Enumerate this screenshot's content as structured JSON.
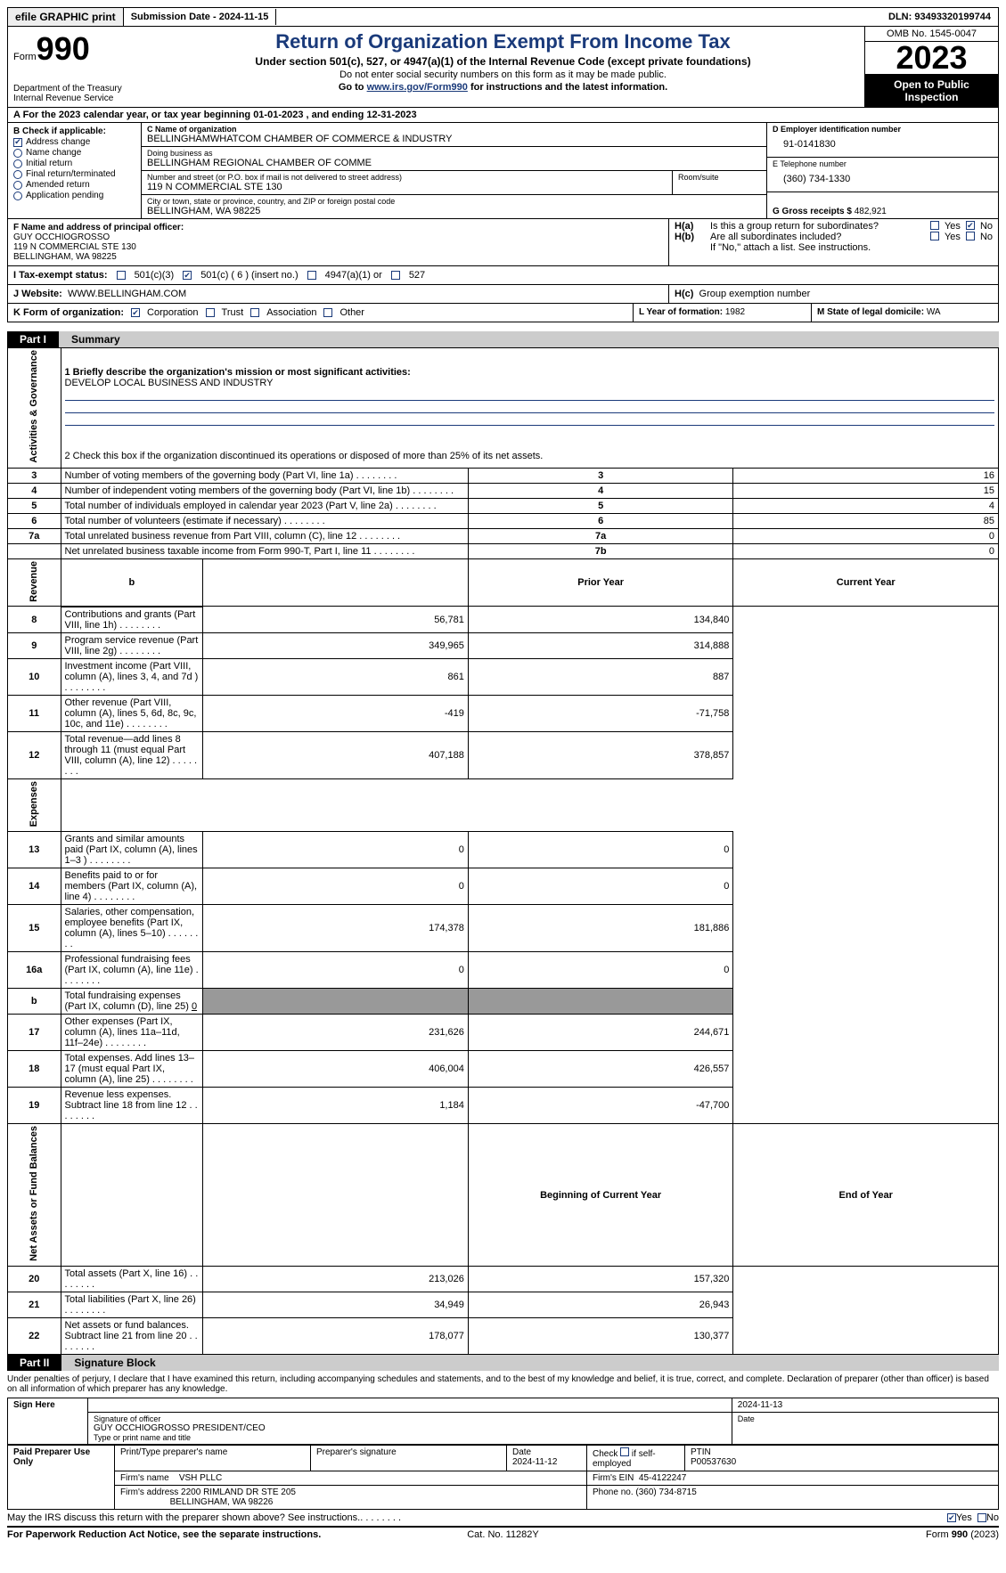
{
  "topbar": {
    "efile_btn": "efile GRAPHIC print",
    "submission": "Submission Date - 2024-11-15",
    "dln": "DLN: 93493320199744"
  },
  "header": {
    "form_word": "Form",
    "form_num": "990",
    "dept": "Department of the Treasury",
    "irs": "Internal Revenue Service",
    "title": "Return of Organization Exempt From Income Tax",
    "sub1": "Under section 501(c), 527, or 4947(a)(1) of the Internal Revenue Code (except private foundations)",
    "sub2": "Do not enter social security numbers on this form as it may be made public.",
    "sub3a": "Go to ",
    "sub3link": "www.irs.gov/Form990",
    "sub3b": " for instructions and the latest information.",
    "omb": "OMB No. 1545-0047",
    "year": "2023",
    "open": "Open to Public Inspection"
  },
  "rowA": "A For the 2023 calendar year, or tax year beginning 01-01-2023   , and ending 12-31-2023",
  "boxB": {
    "label": "B Check if applicable:",
    "items": [
      {
        "label": "Address change",
        "checked": true,
        "shape": "square"
      },
      {
        "label": "Name change",
        "checked": false,
        "shape": "round"
      },
      {
        "label": "Initial return",
        "checked": false,
        "shape": "round"
      },
      {
        "label": "Final return/terminated",
        "checked": false,
        "shape": "round"
      },
      {
        "label": "Amended return",
        "checked": false,
        "shape": "round"
      },
      {
        "label": "Application pending",
        "checked": false,
        "shape": "round"
      }
    ]
  },
  "boxC": {
    "name_lab": "C Name of organization",
    "name": "BELLINGHAMWHATCOM CHAMBER OF COMMERCE & INDUSTRY",
    "dba_lab": "Doing business as",
    "dba": "BELLINGHAM REGIONAL CHAMBER OF COMME",
    "street_lab": "Number and street (or P.O. box if mail is not delivered to street address)",
    "street": "119 N COMMERCIAL STE 130",
    "room_lab": "Room/suite",
    "room": "",
    "city_lab": "City or town, state or province, country, and ZIP or foreign postal code",
    "city": "BELLINGHAM, WA  98225"
  },
  "boxD": {
    "lab": "D Employer identification number",
    "val": "91-0141830"
  },
  "boxE": {
    "lab": "E Telephone number",
    "val": "(360) 734-1330"
  },
  "boxG": {
    "lab": "G Gross receipts $",
    "val": "482,921"
  },
  "boxF": {
    "lab": "F  Name and address of principal officer:",
    "name": "GUY OCCHIOGROSSO",
    "addr1": "119 N COMMERCIAL STE 130",
    "addr2": "BELLINGHAM, WA  98225"
  },
  "boxH": {
    "a_lab": "H(a)",
    "a_q": "Is this a group return for subordinates?",
    "a_yes": false,
    "a_no": true,
    "b_lab": "H(b)",
    "b_q": "Are all subordinates included?",
    "b_yes": false,
    "b_no": false,
    "b_note": "If \"No,\" attach a list. See instructions.",
    "c_lab": "H(c)",
    "c_q": "Group exemption number",
    "c_val": ""
  },
  "boxI": {
    "lab": "I   Tax-exempt status:",
    "o1": "501(c)(3)",
    "o1c": false,
    "o2": "501(c) ( 6 ) (insert no.)",
    "o2c": true,
    "o3": "4947(a)(1) or",
    "o3c": false,
    "o4": "527",
    "o4c": false
  },
  "boxJ": {
    "lab": "J    Website:",
    "val": "WWW.BELLINGHAM.COM"
  },
  "boxK": {
    "lab": "K Form of organization:",
    "o1": "Corporation",
    "o1c": true,
    "o2": "Trust",
    "o2c": false,
    "o3": "Association",
    "o3c": false,
    "o4": "Other",
    "o4c": false
  },
  "boxL": {
    "lab": "L Year of formation:",
    "val": "1982"
  },
  "boxM": {
    "lab": "M State of legal domicile:",
    "val": "WA"
  },
  "part1": {
    "tab": "Part I",
    "title": "Summary"
  },
  "p1_mission_q": "1  Briefly describe the organization's mission or most significant activities:",
  "p1_mission": "DEVELOP LOCAL BUSINESS AND INDUSTRY",
  "p1_line2": "2   Check this box      if the organization discontinued its operations or disposed of more than 25% of its net assets.",
  "p1_rows_ag": [
    {
      "n": "3",
      "desc": "Number of voting members of the governing body (Part VI, line 1a)",
      "box": "3",
      "val": "16"
    },
    {
      "n": "4",
      "desc": "Number of independent voting members of the governing body (Part VI, line 1b)",
      "box": "4",
      "val": "15"
    },
    {
      "n": "5",
      "desc": "Total number of individuals employed in calendar year 2023 (Part V, line 2a)",
      "box": "5",
      "val": "4"
    },
    {
      "n": "6",
      "desc": "Total number of volunteers (estimate if necessary)",
      "box": "6",
      "val": "85"
    },
    {
      "n": "7a",
      "desc": "Total unrelated business revenue from Part VIII, column (C), line 12",
      "box": "7a",
      "val": "0"
    },
    {
      "n": "",
      "desc": "Net unrelated business taxable income from Form 990-T, Part I, line 11",
      "box": "7b",
      "val": "0"
    }
  ],
  "p1_rev_head": {
    "b": "b",
    "prior": "Prior Year",
    "current": "Current Year"
  },
  "p1_rev_rows": [
    {
      "n": "8",
      "desc": "Contributions and grants (Part VIII, line 1h)",
      "p": "56,781",
      "c": "134,840"
    },
    {
      "n": "9",
      "desc": "Program service revenue (Part VIII, line 2g)",
      "p": "349,965",
      "c": "314,888"
    },
    {
      "n": "10",
      "desc": "Investment income (Part VIII, column (A), lines 3, 4, and 7d )",
      "p": "861",
      "c": "887"
    },
    {
      "n": "11",
      "desc": "Other revenue (Part VIII, column (A), lines 5, 6d, 8c, 9c, 10c, and 11e)",
      "p": "-419",
      "c": "-71,758"
    },
    {
      "n": "12",
      "desc": "Total revenue—add lines 8 through 11 (must equal Part VIII, column (A), line 12)",
      "p": "407,188",
      "c": "378,857"
    }
  ],
  "p1_exp_rows": [
    {
      "n": "13",
      "desc": "Grants and similar amounts paid (Part IX, column (A), lines 1–3 )",
      "p": "0",
      "c": "0"
    },
    {
      "n": "14",
      "desc": "Benefits paid to or for members (Part IX, column (A), line 4)",
      "p": "0",
      "c": "0"
    },
    {
      "n": "15",
      "desc": "Salaries, other compensation, employee benefits (Part IX, column (A), lines 5–10)",
      "p": "174,378",
      "c": "181,886"
    },
    {
      "n": "16a",
      "desc": "Professional fundraising fees (Part IX, column (A), line 11e)",
      "p": "0",
      "c": "0"
    }
  ],
  "p1_16b": {
    "n": "b",
    "desc": "Total fundraising expenses (Part IX, column (D), line 25)",
    "val": "0"
  },
  "p1_exp_rows2": [
    {
      "n": "17",
      "desc": "Other expenses (Part IX, column (A), lines 11a–11d, 11f–24e)",
      "p": "231,626",
      "c": "244,671"
    },
    {
      "n": "18",
      "desc": "Total expenses. Add lines 13–17 (must equal Part IX, column (A), line 25)",
      "p": "406,004",
      "c": "426,557"
    },
    {
      "n": "19",
      "desc": "Revenue less expenses. Subtract line 18 from line 12",
      "p": "1,184",
      "c": "-47,700"
    }
  ],
  "p1_na_head": {
    "prior": "Beginning of Current Year",
    "current": "End of Year"
  },
  "p1_na_rows": [
    {
      "n": "20",
      "desc": "Total assets (Part X, line 16)",
      "p": "213,026",
      "c": "157,320"
    },
    {
      "n": "21",
      "desc": "Total liabilities (Part X, line 26)",
      "p": "34,949",
      "c": "26,943"
    },
    {
      "n": "22",
      "desc": "Net assets or fund balances. Subtract line 21 from line 20",
      "p": "178,077",
      "c": "130,377"
    }
  ],
  "vlabels": {
    "ag": "Activities & Governance",
    "rev": "Revenue",
    "exp": "Expenses",
    "na": "Net Assets or Fund Balances"
  },
  "part2": {
    "tab": "Part II",
    "title": "Signature Block"
  },
  "penalties": "Under penalties of perjury, I declare that I have examined this return, including accompanying schedules and statements, and to the best of my knowledge and belief, it is true, correct, and complete. Declaration of preparer (other than officer) is based on all information of which preparer has any knowledge.",
  "sign": {
    "left": "Sign Here",
    "date": "2024-11-13",
    "sig_lab": "Signature of officer",
    "sig_name": "GUY OCCHIOGROSSO  PRESIDENT/CEO",
    "date_lab": "Date",
    "type_lab": "Type or print name and title"
  },
  "paid": {
    "left": "Paid Preparer Use Only",
    "h1": "Print/Type preparer's name",
    "h2": "Preparer's signature",
    "h3": "Date",
    "h3v": "2024-11-12",
    "h4a": "Check",
    "h4b": "if self-employed",
    "h5": "PTIN",
    "h5v": "P00537630",
    "firm_lab": "Firm's name",
    "firm": "VSH PLLC",
    "ein_lab": "Firm's EIN",
    "ein": "45-4122247",
    "addr_lab": "Firm's address",
    "addr1": "2200 RIMLAND DR STE 205",
    "addr2": "BELLINGHAM, WA  98226",
    "phone_lab": "Phone no.",
    "phone": "(360) 734-8715"
  },
  "discuss": {
    "q": "May the IRS discuss this return with the preparer shown above? See instructions.",
    "yes": true,
    "no": false
  },
  "footer": {
    "l": "For Paperwork Reduction Act Notice, see the separate instructions.",
    "c": "Cat. No. 11282Y",
    "r": "Form 990 (2023)"
  },
  "yn_labels": {
    "yes": "Yes",
    "no": "No"
  }
}
